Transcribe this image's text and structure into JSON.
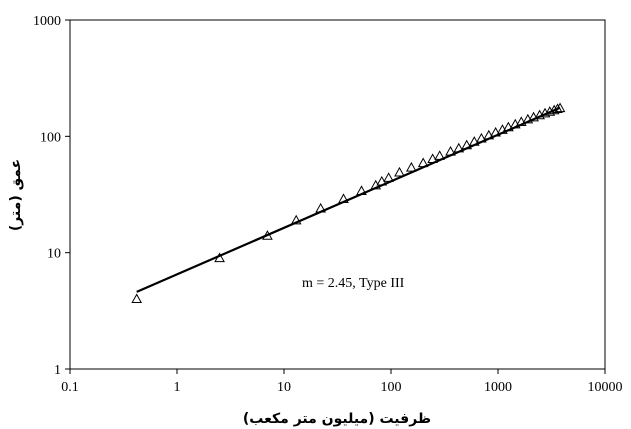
{
  "chart_data": {
    "type": "scatter",
    "title": "",
    "xlabel": "ظرفیت (میلیون متر مکعب)",
    "ylabel": "عمق (متر)",
    "x_scale": "log",
    "y_scale": "log",
    "xlim": [
      0.1,
      10000
    ],
    "ylim": [
      1,
      1000
    ],
    "x_ticks": [
      "0.1",
      "1",
      "10",
      "100",
      "1000",
      "10000"
    ],
    "y_ticks": [
      "1",
      "10",
      "100",
      "1000"
    ],
    "grid": false,
    "legend": "none",
    "annotation": "m = 2.45, Type III",
    "series": [
      {
        "kind": "points",
        "marker": "open-triangle",
        "x": [
          0.42,
          2.5,
          7,
          13,
          22,
          36,
          53,
          72,
          82,
          95,
          120,
          155,
          200,
          245,
          285,
          360,
          430,
          510,
          600,
          700,
          820,
          950,
          1100,
          1250,
          1450,
          1650,
          1900,
          2150,
          2450,
          2750,
          3050,
          3350,
          3600,
          3800
        ],
        "y": [
          4,
          9,
          14,
          19,
          24,
          29,
          34,
          38,
          41,
          44,
          49,
          54,
          59,
          64,
          68,
          74,
          79,
          84,
          90,
          96,
          102,
          108,
          114,
          120,
          127,
          133,
          140,
          146,
          152,
          158,
          163,
          168,
          172,
          175
        ]
      },
      {
        "kind": "line",
        "x": [
          0.42,
          3800
        ],
        "y": [
          4.6,
          176
        ]
      }
    ]
  }
}
